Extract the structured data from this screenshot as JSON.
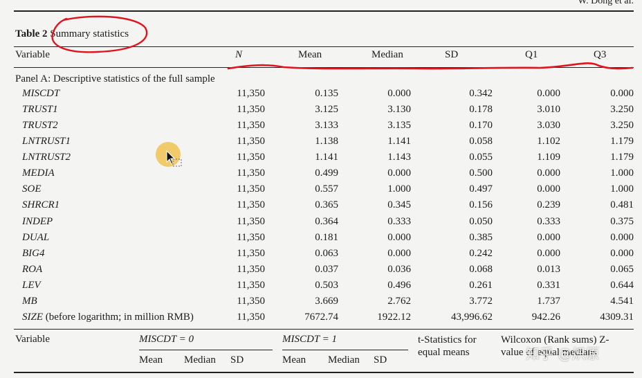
{
  "running_head": "W. Dong et al.",
  "caption": {
    "label": "Table 2",
    "title": "Summary statistics"
  },
  "columns": {
    "variable": "Variable",
    "n": "N",
    "mean": "Mean",
    "median": "Median",
    "sd": "SD",
    "q1": "Q1",
    "q3": "Q3"
  },
  "panel_a": {
    "title": "Panel A: Descriptive statistics of the full sample",
    "rows": [
      {
        "var": "MISCDT",
        "n": "11,350",
        "mean": "0.135",
        "median": "0.000",
        "sd": "0.342",
        "q1": "0.000",
        "q3": "0.000"
      },
      {
        "var": "TRUST1",
        "n": "11,350",
        "mean": "3.125",
        "median": "3.130",
        "sd": "0.178",
        "q1": "3.010",
        "q3": "3.250"
      },
      {
        "var": "TRUST2",
        "n": "11,350",
        "mean": "3.133",
        "median": "3.135",
        "sd": "0.170",
        "q1": "3.030",
        "q3": "3.250"
      },
      {
        "var": "LNTRUST1",
        "n": "11,350",
        "mean": "1.138",
        "median": "1.141",
        "sd": "0.058",
        "q1": "1.102",
        "q3": "1.179"
      },
      {
        "var": "LNTRUST2",
        "n": "11,350",
        "mean": "1.141",
        "median": "1.143",
        "sd": "0.055",
        "q1": "1.109",
        "q3": "1.179"
      },
      {
        "var": "MEDIA",
        "n": "11,350",
        "mean": "0.499",
        "median": "0.000",
        "sd": "0.500",
        "q1": "0.000",
        "q3": "1.000"
      },
      {
        "var": "SOE",
        "n": "11,350",
        "mean": "0.557",
        "median": "1.000",
        "sd": "0.497",
        "q1": "0.000",
        "q3": "1.000"
      },
      {
        "var": "SHRCR1",
        "n": "11,350",
        "mean": "0.365",
        "median": "0.345",
        "sd": "0.156",
        "q1": "0.239",
        "q3": "0.481"
      },
      {
        "var": "INDEP",
        "n": "11,350",
        "mean": "0.364",
        "median": "0.333",
        "sd": "0.050",
        "q1": "0.333",
        "q3": "0.375"
      },
      {
        "var": "DUAL",
        "n": "11,350",
        "mean": "0.181",
        "median": "0.000",
        "sd": "0.385",
        "q1": "0.000",
        "q3": "0.000"
      },
      {
        "var": "BIG4",
        "n": "11,350",
        "mean": "0.063",
        "median": "0.000",
        "sd": "0.242",
        "q1": "0.000",
        "q3": "0.000"
      },
      {
        "var": "ROA",
        "n": "11,350",
        "mean": "0.037",
        "median": "0.036",
        "sd": "0.068",
        "q1": "0.013",
        "q3": "0.065"
      },
      {
        "var": "LEV",
        "n": "11,350",
        "mean": "0.503",
        "median": "0.496",
        "sd": "0.261",
        "q1": "0.331",
        "q3": "0.644"
      },
      {
        "var": "MB",
        "n": "11,350",
        "mean": "3.669",
        "median": "2.762",
        "sd": "3.772",
        "q1": "1.737",
        "q3": "4.541"
      },
      {
        "var": "SIZE",
        "var_note": " (before logarithm; in million RMB)",
        "n": "11,350",
        "mean": "7672.74",
        "median": "1922.12",
        "sd": "43,996.62",
        "q1": "942.26",
        "q3": "4309.31"
      }
    ]
  },
  "panel_b_header": {
    "variable": "Variable",
    "group0": "MISCDT = 0",
    "group1": "MISCDT = 1",
    "tstat": "t-Statistics for equal means",
    "wilcoxon": "Wilcoxon (Rank sums) Z-value of equal medians",
    "sub": {
      "mean": "Mean",
      "median": "Median",
      "sd": "SD"
    }
  },
  "annotation": {
    "color": "#e0141e"
  },
  "watermark": "知乎 @炽原"
}
